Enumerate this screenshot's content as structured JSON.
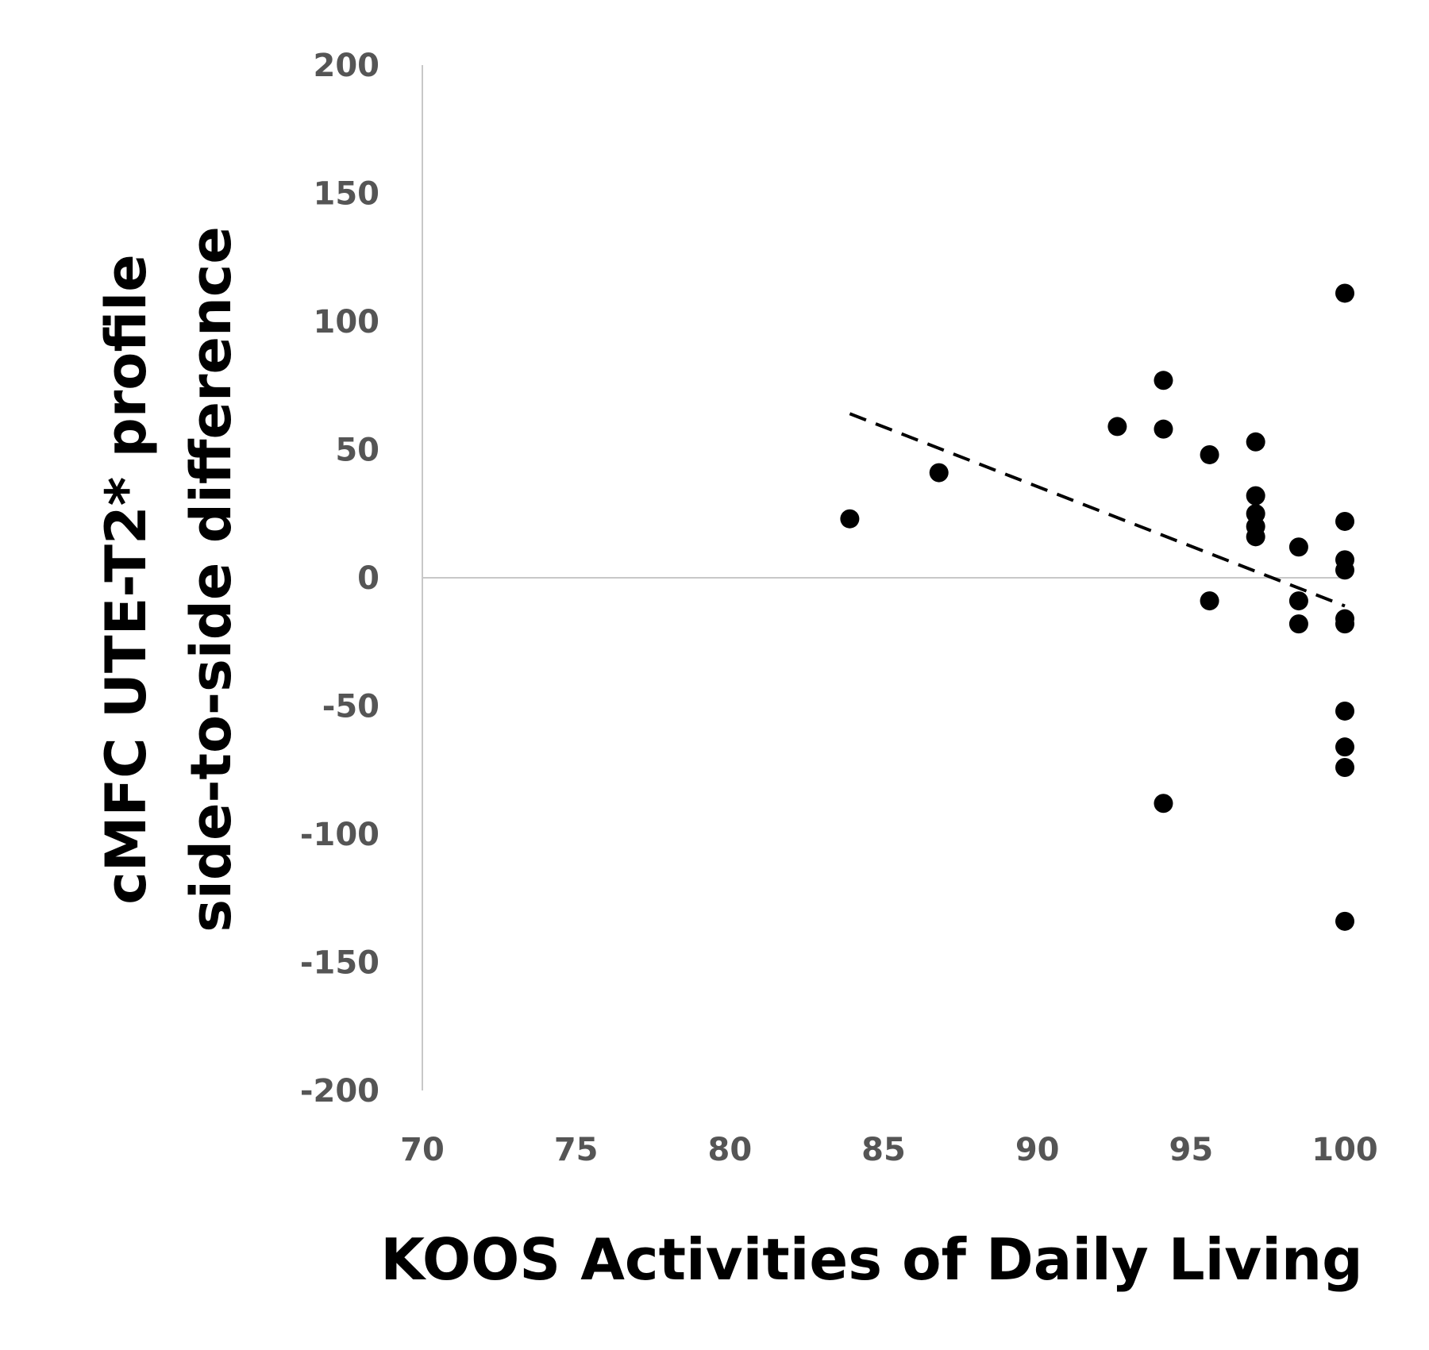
{
  "chart_data": {
    "type": "scatter",
    "title": "",
    "xlabel": "KOOS Activities of Daily Living",
    "ylabel_lines": [
      "cMFC UTE-T2* profile",
      "side-to-side difference"
    ],
    "xlim": [
      70,
      100
    ],
    "ylim": [
      -200,
      200
    ],
    "x_ticks": [
      "70",
      "75",
      "80",
      "85",
      "90",
      "95",
      "100"
    ],
    "y_ticks": [
      "200",
      "150",
      "100",
      "50",
      "0",
      "-50",
      "-100",
      "-150",
      "-200"
    ],
    "grid": false,
    "legend": "none",
    "series": [
      {
        "marker_color": "#000000",
        "points": [
          {
            "x": 83.9,
            "y": 23
          },
          {
            "x": 86.8,
            "y": 41
          },
          {
            "x": 92.6,
            "y": 59
          },
          {
            "x": 94.1,
            "y": 77
          },
          {
            "x": 94.1,
            "y": 58
          },
          {
            "x": 94.1,
            "y": -88
          },
          {
            "x": 95.6,
            "y": 48
          },
          {
            "x": 95.6,
            "y": -9
          },
          {
            "x": 97.1,
            "y": 53
          },
          {
            "x": 97.1,
            "y": 32
          },
          {
            "x": 97.1,
            "y": 25
          },
          {
            "x": 97.1,
            "y": 20
          },
          {
            "x": 97.1,
            "y": 16
          },
          {
            "x": 98.5,
            "y": 12
          },
          {
            "x": 98.5,
            "y": -9
          },
          {
            "x": 98.5,
            "y": -18
          },
          {
            "x": 100,
            "y": 111
          },
          {
            "x": 100,
            "y": 22
          },
          {
            "x": 100,
            "y": 7
          },
          {
            "x": 100,
            "y": 3
          },
          {
            "x": 100,
            "y": -16
          },
          {
            "x": 100,
            "y": -18
          },
          {
            "x": 100,
            "y": -52
          },
          {
            "x": 100,
            "y": -66
          },
          {
            "x": 100,
            "y": -74
          },
          {
            "x": 100,
            "y": -134
          }
        ]
      }
    ],
    "trendline": {
      "style": "dashed",
      "color": "#000000",
      "x": [
        83.9,
        100
      ],
      "y": [
        64,
        -11
      ]
    }
  }
}
